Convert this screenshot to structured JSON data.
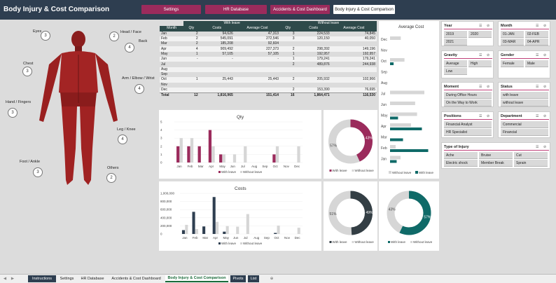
{
  "header": {
    "title": "Body Injury & Cost Comparison",
    "nav": [
      "Settings",
      "HR Database",
      "Accidents & Cost Dashboard",
      "Body Injury & Cost Comparison"
    ]
  },
  "body": {
    "labels": [
      "Eyes",
      "Head / Face",
      "Back",
      "Chest",
      "Arm / Elbow / Wrist",
      "Hand / Fingers",
      "Leg / Knee",
      "Foot / Ankle",
      "Others"
    ],
    "counts": [
      "3",
      "2",
      "4",
      "3",
      "4",
      "3",
      "4",
      "3",
      "2"
    ]
  },
  "table": {
    "group_with": "With leave",
    "group_without": "Without leave",
    "cols": [
      "Month",
      "Qty",
      "Costs",
      "Average Cost",
      "Qty",
      "Costs",
      "Average Cost"
    ],
    "rows": [
      [
        "Jan",
        "2",
        "94,626",
        "47,313",
        "3",
        "224,533",
        "74,845"
      ],
      [
        "Feb",
        "2",
        "545,091",
        "272,546",
        "3",
        "120,150",
        "40,050"
      ],
      [
        "Mar",
        "2",
        "185,208",
        "92,604",
        "",
        "",
        ""
      ],
      [
        "Apr",
        "4",
        "909,492",
        "227,373",
        "2",
        "298,392",
        "149,196"
      ],
      [
        "May",
        "1",
        "57,105",
        "57,105",
        "1",
        "192,957",
        "192,957"
      ],
      [
        "Jun",
        "-",
        "-",
        "-",
        "1",
        "179,241",
        "179,241"
      ],
      [
        "Jul",
        "",
        "",
        "",
        "2",
        "489,876",
        "244,938"
      ],
      [
        "Aug",
        "",
        "",
        "",
        "",
        "",
        ""
      ],
      [
        "Sep",
        "",
        "",
        "",
        "",
        "",
        ""
      ],
      [
        "Oct",
        "1",
        "25,443",
        "25,443",
        "2",
        "205,932",
        "102,966"
      ],
      [
        "Nov",
        "",
        "",
        "",
        "",
        "",
        ""
      ],
      [
        "Dec",
        "",
        "",
        "",
        "2",
        "153,390",
        "76,695"
      ]
    ],
    "total": [
      "Total",
      "12",
      "1,816,965",
      "151,414",
      "16",
      "1,864,471",
      "116,530"
    ]
  },
  "avg_chart": {
    "title": "Average Cost",
    "months": [
      "Dec",
      "Nov",
      "Oct",
      "Sep",
      "Aug",
      "Jul",
      "Jun",
      "May",
      "Apr",
      "Mar",
      "Feb",
      "Jan"
    ],
    "with": [
      0,
      0,
      25443,
      0,
      0,
      0,
      0,
      57105,
      227373,
      92604,
      272546,
      47313
    ],
    "without": [
      76695,
      0,
      102966,
      0,
      0,
      244938,
      179241,
      192957,
      149196,
      0,
      40050,
      74845
    ],
    "legend": [
      "Without leave",
      "With leave"
    ]
  },
  "qty_chart": {
    "title": "Qty",
    "months": [
      "Jan",
      "Feb",
      "Mar",
      "Apr",
      "May",
      "Jun",
      "Jul",
      "Aug",
      "Sep",
      "Oct",
      "Nov",
      "Dec"
    ],
    "with": [
      2,
      2,
      2,
      4,
      1,
      0,
      0,
      0,
      0,
      1,
      0,
      0
    ],
    "without": [
      3,
      3,
      0,
      2,
      1,
      1,
      2,
      0,
      0,
      2,
      0,
      2
    ],
    "ylim": [
      0,
      5
    ],
    "ticks": [
      "0",
      "1",
      "2",
      "3",
      "4",
      "5"
    ],
    "legend": [
      "With leave",
      "Without leave"
    ]
  },
  "cost_chart": {
    "title": "Costs",
    "months": [
      "Jan",
      "Feb",
      "Mar",
      "Apr",
      "May",
      "Jun",
      "Jul",
      "Aug",
      "Sep",
      "Oct",
      "Nov",
      "Dec"
    ],
    "with": [
      94626,
      545091,
      185208,
      909492,
      57105,
      0,
      0,
      0,
      0,
      25443,
      0,
      0
    ],
    "without": [
      224533,
      120150,
      0,
      298392,
      192957,
      179241,
      489876,
      0,
      0,
      205932,
      0,
      153390
    ],
    "ylim": [
      0,
      1000000
    ],
    "ticks": [
      "0",
      "200,000",
      "400,000",
      "600,000",
      "800,000",
      "1,000,000"
    ],
    "legend": [
      "With leave",
      "Without leave"
    ]
  },
  "donuts": [
    {
      "a": 43,
      "b": 57,
      "la": "43%",
      "lb": "57%",
      "color": "#9b2b5c",
      "legend": [
        "With leave",
        "Without leave"
      ]
    },
    {
      "a": 49,
      "b": 51,
      "la": "49%",
      "lb": "51%",
      "color": "#333e44",
      "legend": [
        "With leave",
        "Without leave"
      ]
    },
    {
      "a": 57,
      "b": 43,
      "la": "57%",
      "lb": "43%",
      "color": "#0f6a68",
      "legend": [
        "With leave",
        "Without leave"
      ]
    }
  ],
  "slicers": {
    "year": {
      "title": "Year",
      "items": [
        "2019",
        "2020",
        "2021"
      ]
    },
    "month": {
      "title": "Month",
      "items": [
        "01-JAN",
        "02-FEB",
        "03-MAR",
        "04-APR"
      ]
    },
    "gravity": {
      "title": "Gravity",
      "items": [
        "Average",
        "High",
        "Low"
      ]
    },
    "gender": {
      "title": "Gender",
      "items": [
        "Female",
        "Male"
      ]
    },
    "moment": {
      "title": "Moment",
      "items": [
        "During Office Hours",
        "On the Way to Work"
      ]
    },
    "status": {
      "title": "Status",
      "items": [
        "with leave",
        "without leave"
      ]
    },
    "positions": {
      "title": "Positions",
      "items": [
        "Financial Analyst",
        "HR Specialist"
      ]
    },
    "department": {
      "title": "Department",
      "items": [
        "Commercial",
        "Financial"
      ]
    },
    "injury": {
      "title": "Type of Injury",
      "items": [
        "Ache",
        "Bruise",
        "Cut",
        "Electric shock",
        "Member Break",
        "Sprain"
      ]
    }
  },
  "tabs": [
    "Instructions",
    "Settings",
    "HR Database",
    "Accidents & Cost Dashboard",
    "Body Injury & Cost Comparison",
    "Pivots",
    "List"
  ],
  "colors": {
    "with": "#9b2b5c",
    "dark": "#2e3e50",
    "teal": "#0f6a68",
    "grey": "#d0d0d0"
  }
}
